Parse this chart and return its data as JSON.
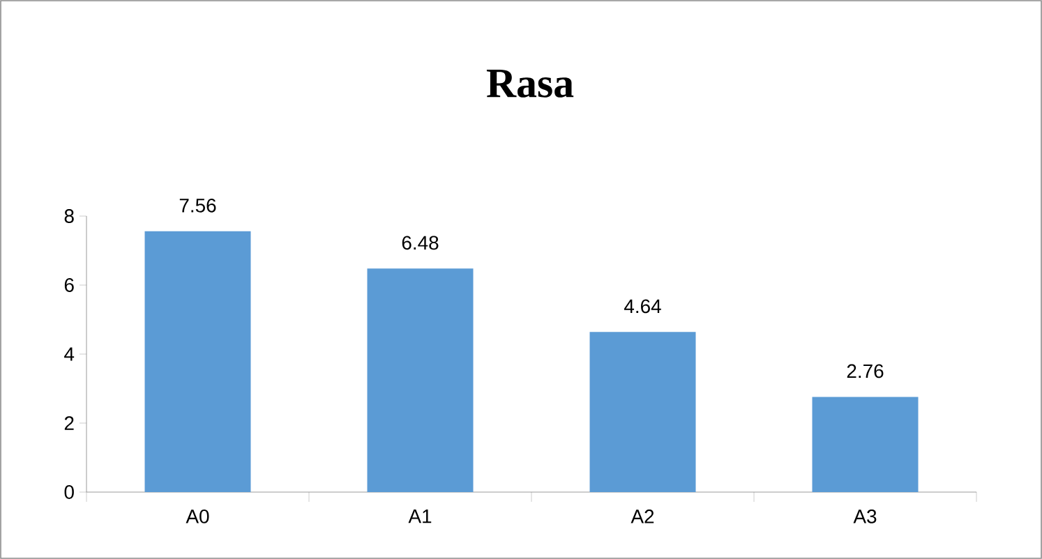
{
  "chart_data": {
    "type": "bar",
    "title": "Rasa",
    "categories": [
      "A0",
      "A1",
      "A2",
      "A3"
    ],
    "values": [
      7.56,
      6.48,
      4.64,
      2.76
    ],
    "color": "#5b9bd5",
    "ylim": [
      0,
      8
    ],
    "yticks": [
      0,
      2,
      4,
      6,
      8
    ],
    "data_labels": true
  }
}
